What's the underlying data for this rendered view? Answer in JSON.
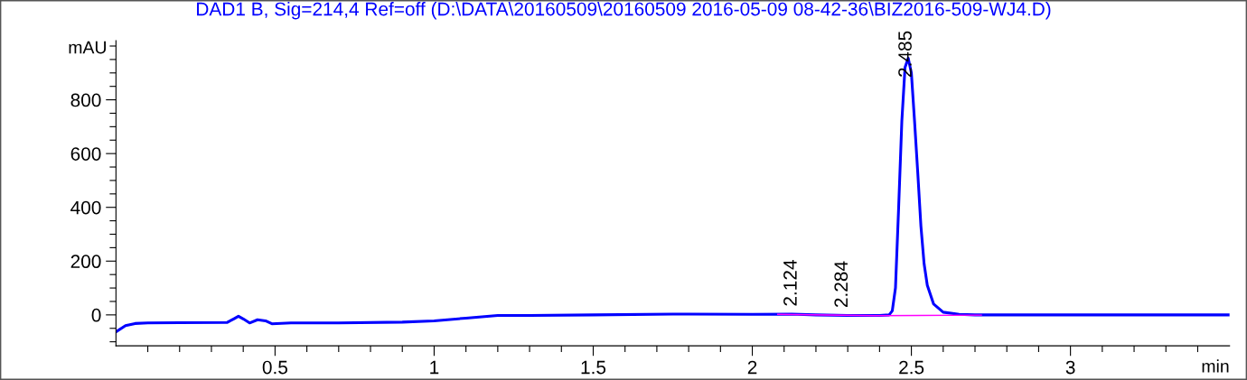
{
  "chart_data": {
    "type": "line",
    "title": "DAD1 B, Sig=214,4 Ref=off (D:\\DATA\\20160509\\20160509 2016-05-09 08-42-36\\BIZ2016-509-WJ4.D)",
    "xlabel": "min",
    "ylabel": "mAU",
    "series": [
      {
        "color": "#0000ff",
        "x": [
          0,
          0.03,
          0.06,
          0.1,
          0.2,
          0.35,
          0.37,
          0.385,
          0.4,
          0.42,
          0.445,
          0.47,
          0.49,
          0.55,
          0.7,
          0.9,
          1.0,
          1.1,
          1.2,
          1.3,
          1.5,
          1.75,
          2.0,
          2.124,
          2.2,
          2.3,
          2.4,
          2.43,
          2.44,
          2.45,
          2.46,
          2.47,
          2.48,
          2.49,
          2.5,
          2.51,
          2.52,
          2.53,
          2.54,
          2.55,
          2.57,
          2.6,
          2.65,
          2.7,
          3.0,
          3.5
        ],
        "values": [
          -63,
          -40,
          -32,
          -30,
          -29,
          -28,
          -15,
          -5,
          -15,
          -30,
          -18,
          -22,
          -33,
          -30,
          -30,
          -27,
          -22,
          -12,
          -2,
          -2,
          0,
          3,
          2,
          3,
          0,
          -2,
          -2,
          0,
          15,
          100,
          400,
          720,
          920,
          955,
          900,
          720,
          530,
          330,
          190,
          110,
          40,
          10,
          2,
          0,
          0,
          0
        ]
      },
      {
        "color": "#ff00ff",
        "x": [
          2.08,
          2.385,
          2.72
        ],
        "values": [
          2,
          -3,
          -1
        ]
      }
    ],
    "annotations": [
      {
        "text": "2.124",
        "x": 2.124,
        "y": 3
      },
      {
        "text": "2.284",
        "x": 2.284,
        "y": -2
      },
      {
        "text": "2.485",
        "x": 2.485,
        "y": 955
      }
    ],
    "xlim": [
      0,
      3.5
    ],
    "ylim": [
      -115,
      1020
    ],
    "xticks": [
      {
        "value": 0.1,
        "label": null
      },
      {
        "value": 0.2,
        "label": null
      },
      {
        "value": 0.3,
        "label": null
      },
      {
        "value": 0.4,
        "label": null
      },
      0.5,
      {
        "value": 0.6,
        "label": null
      },
      {
        "value": 0.7,
        "label": null
      },
      {
        "value": 0.8,
        "label": null
      },
      {
        "value": 0.9,
        "label": null
      },
      1,
      {
        "value": 1.1,
        "label": null
      },
      {
        "value": 1.2,
        "label": null
      },
      {
        "value": 1.3,
        "label": null
      },
      {
        "value": 1.4,
        "label": null
      },
      1.5,
      {
        "value": 1.6,
        "label": null
      },
      {
        "value": 1.7,
        "label": null
      },
      {
        "value": 1.8,
        "label": null
      },
      {
        "value": 1.9,
        "label": null
      },
      2,
      {
        "value": 2.1,
        "label": null
      },
      {
        "value": 2.2,
        "label": null
      },
      {
        "value": 2.3,
        "label": null
      },
      {
        "value": 2.4,
        "label": null
      },
      2.5,
      {
        "value": 2.6,
        "label": null
      },
      {
        "value": 2.7,
        "label": null
      },
      {
        "value": 2.8,
        "label": null
      },
      {
        "value": 2.9,
        "label": null
      },
      3,
      {
        "value": 3.1,
        "label": null
      },
      {
        "value": 3.2,
        "label": null
      },
      {
        "value": 3.3,
        "label": null
      },
      {
        "value": 3.4,
        "label": null
      }
    ],
    "yticks": [
      {
        "value": -100,
        "label": null
      },
      {
        "value": -50,
        "label": null
      },
      0,
      {
        "value": 50,
        "label": null
      },
      {
        "value": 100,
        "label": null
      },
      {
        "value": 150,
        "label": null
      },
      200,
      {
        "value": 250,
        "label": null
      },
      {
        "value": 300,
        "label": null
      },
      {
        "value": 350,
        "label": null
      },
      400,
      {
        "value": 450,
        "label": null
      },
      {
        "value": 500,
        "label": null
      },
      {
        "value": 550,
        "label": null
      },
      600,
      {
        "value": 650,
        "label": null
      },
      {
        "value": 700,
        "label": null
      },
      {
        "value": 750,
        "label": null
      },
      800,
      {
        "value": 850,
        "label": null
      },
      {
        "value": 900,
        "label": null
      },
      {
        "value": 950,
        "label": null
      },
      {
        "value": 1000,
        "label": null
      }
    ],
    "grid": false,
    "legend": false
  }
}
